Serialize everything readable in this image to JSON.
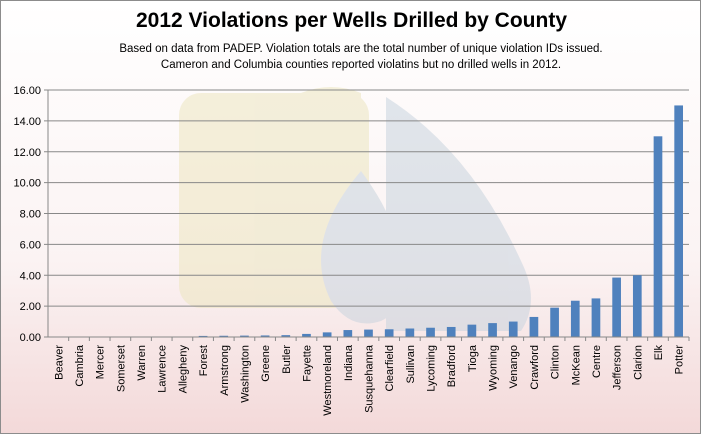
{
  "title": "2012 Violations per Wells Drilled by County",
  "subtitle_lines": [
    "Based on data from PADEP.  Violation totals are the total number of unique violation IDs issued.",
    "Cameron and Columbia counties reported violatins but no drilled wells in 2012."
  ],
  "colors": {
    "bar": "#4f81bd",
    "grid": "#888888",
    "axis": "#888888"
  },
  "chart_data": {
    "type": "bar",
    "title": "2012 Violations per Wells Drilled by County",
    "xlabel": "",
    "ylabel": "",
    "ylim": [
      0,
      16
    ],
    "y_ticks": [
      "0.00",
      "2.00",
      "4.00",
      "6.00",
      "8.00",
      "10.00",
      "12.00",
      "14.00",
      "16.00"
    ],
    "grid": true,
    "legend": "none",
    "categories": [
      "Beaver",
      "Cambria",
      "Mercer",
      "Somerset",
      "Warren",
      "Lawrence",
      "Allegheny",
      "Forest",
      "Armstrong",
      "Washington",
      "Greene",
      "Butler",
      "Fayette",
      "Westmoreland",
      "Indiana",
      "Susquehanna",
      "Clearfield",
      "Sullivan",
      "Lycoming",
      "Bradford",
      "Tioga",
      "Wyoming",
      "Venango",
      "Crawford",
      "Clinton",
      "McKean",
      "Centre",
      "Jefferson",
      "Clarion",
      "Elk",
      "Potter"
    ],
    "values": [
      0,
      0,
      0,
      0,
      0,
      0,
      0,
      0.07,
      0.08,
      0.09,
      0.1,
      0.12,
      0.2,
      0.3,
      0.45,
      0.48,
      0.5,
      0.55,
      0.6,
      0.65,
      0.8,
      0.9,
      1.0,
      1.3,
      1.9,
      2.35,
      2.5,
      3.85,
      4.0,
      13.0,
      15.0
    ]
  }
}
